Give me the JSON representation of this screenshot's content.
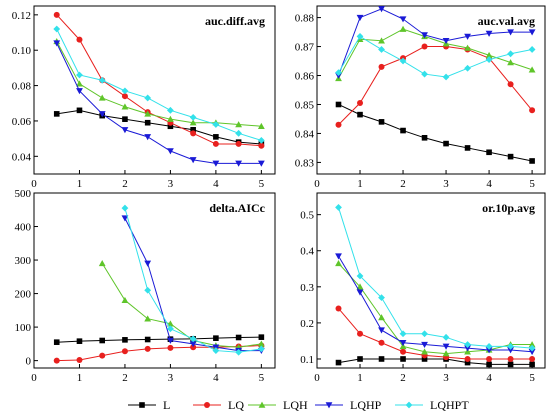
{
  "legend": {
    "items": [
      {
        "key": "L",
        "label": "L"
      },
      {
        "key": "LQ",
        "label": "LQ"
      },
      {
        "key": "LQH",
        "label": "LQH"
      },
      {
        "key": "LQHP",
        "label": "LQHP"
      },
      {
        "key": "LQHPT",
        "label": "LQHPT"
      }
    ],
    "placement": "bottom"
  },
  "series_style": {
    "L": {
      "color": "#000000",
      "marker": "square"
    },
    "LQ": {
      "color": "#e8201e",
      "marker": "circle"
    },
    "LQH": {
      "color": "#5fc52a",
      "marker": "triangle-up"
    },
    "LQHP": {
      "color": "#1a1ad6",
      "marker": "triangle-down"
    },
    "LQHPT": {
      "color": "#33e1ea",
      "marker": "diamond"
    }
  },
  "chart_data": [
    {
      "type": "line",
      "title": "auc.diff.avg",
      "xlim": [
        0,
        5.3
      ],
      "xticks": [
        0,
        1,
        2,
        3,
        4,
        5
      ],
      "ylim": [
        0.03,
        0.125
      ],
      "yticks": [
        0.04,
        0.06,
        0.08,
        0.1,
        0.12
      ],
      "ytick_labels": [
        "0.04",
        "0.06",
        "0.08",
        "0.10",
        "0.12"
      ],
      "series": [
        {
          "key": "L",
          "x": [
            0.5,
            1,
            1.5,
            2,
            2.5,
            3,
            3.5,
            4,
            4.5,
            5
          ],
          "values": [
            0.064,
            0.066,
            0.063,
            0.061,
            0.059,
            0.057,
            0.055,
            0.051,
            0.048,
            0.047
          ]
        },
        {
          "key": "LQ",
          "x": [
            0.5,
            1,
            1.5,
            2,
            2.5,
            3,
            3.5,
            4,
            4.5,
            5
          ],
          "values": [
            0.12,
            0.106,
            0.083,
            0.074,
            0.065,
            0.059,
            0.053,
            0.047,
            0.047,
            0.046
          ]
        },
        {
          "key": "LQH",
          "x": [
            0.5,
            1,
            1.5,
            2,
            2.5,
            3,
            3.5,
            4,
            4.5,
            5
          ],
          "values": [
            0.105,
            0.081,
            0.073,
            0.068,
            0.064,
            0.061,
            0.059,
            0.059,
            0.058,
            0.057
          ]
        },
        {
          "key": "LQHP",
          "x": [
            0.5,
            1,
            1.5,
            2,
            2.5,
            3,
            3.5,
            4,
            4.5,
            5
          ],
          "values": [
            0.104,
            0.077,
            0.064,
            0.055,
            0.051,
            0.043,
            0.038,
            0.036,
            0.036,
            0.036
          ]
        },
        {
          "key": "LQHPT",
          "x": [
            0.5,
            1,
            1.5,
            2,
            2.5,
            3,
            3.5,
            4,
            4.5,
            5
          ],
          "values": [
            0.112,
            0.086,
            0.083,
            0.077,
            0.073,
            0.066,
            0.062,
            0.058,
            0.053,
            0.049
          ]
        }
      ]
    },
    {
      "type": "line",
      "title": "auc.val.avg",
      "xlim": [
        0,
        5.3
      ],
      "xticks": [
        0,
        1,
        2,
        3,
        4,
        5
      ],
      "ylim": [
        0.826,
        0.884
      ],
      "yticks": [
        0.83,
        0.84,
        0.85,
        0.86,
        0.87,
        0.88
      ],
      "ytick_labels": [
        "0.83",
        "0.84",
        "0.85",
        "0.86",
        "0.87",
        "0.88"
      ],
      "series": [
        {
          "key": "L",
          "x": [
            0.5,
            1,
            1.5,
            2,
            2.5,
            3,
            3.5,
            4,
            4.5,
            5
          ],
          "values": [
            0.85,
            0.8465,
            0.844,
            0.841,
            0.8385,
            0.8365,
            0.835,
            0.8335,
            0.832,
            0.8305
          ]
        },
        {
          "key": "LQ",
          "x": [
            0.5,
            1,
            1.5,
            2,
            2.5,
            3,
            3.5,
            4,
            4.5,
            5
          ],
          "values": [
            0.843,
            0.8505,
            0.863,
            0.866,
            0.87,
            0.87,
            0.869,
            0.866,
            0.857,
            0.848
          ]
        },
        {
          "key": "LQH",
          "x": [
            0.5,
            1,
            1.5,
            2,
            2.5,
            3,
            3.5,
            4,
            4.5,
            5
          ],
          "values": [
            0.859,
            0.8725,
            0.872,
            0.876,
            0.8735,
            0.871,
            0.8695,
            0.867,
            0.8645,
            0.862
          ]
        },
        {
          "key": "LQHP",
          "x": [
            0.5,
            1,
            1.5,
            2,
            2.5,
            3,
            3.5,
            4,
            4.5,
            5
          ],
          "values": [
            0.86,
            0.88,
            0.883,
            0.8795,
            0.874,
            0.872,
            0.8735,
            0.8745,
            0.875,
            0.875
          ]
        },
        {
          "key": "LQHPT",
          "x": [
            0.5,
            1,
            1.5,
            2,
            2.5,
            3,
            3.5,
            4,
            4.5,
            5
          ],
          "values": [
            0.861,
            0.8735,
            0.869,
            0.865,
            0.8605,
            0.8595,
            0.8625,
            0.8655,
            0.8675,
            0.869
          ]
        }
      ]
    },
    {
      "type": "line",
      "title": "delta.AICc",
      "xlim": [
        0,
        5.3
      ],
      "xticks": [
        0,
        1,
        2,
        3,
        4,
        5
      ],
      "ylim": [
        -22,
        500
      ],
      "yticks": [
        0,
        100,
        200,
        300,
        400,
        500
      ],
      "ytick_labels": [
        "0",
        "100",
        "200",
        "300",
        "400",
        "500"
      ],
      "series": [
        {
          "key": "L",
          "x": [
            0.5,
            1,
            1.5,
            2,
            2.5,
            3,
            3.5,
            4,
            4.5,
            5
          ],
          "values": [
            55,
            58,
            60,
            62,
            63,
            64,
            65,
            67,
            69,
            70
          ]
        },
        {
          "key": "LQ",
          "x": [
            0.5,
            1,
            1.5,
            2,
            2.5,
            3,
            3.5,
            4,
            4.5,
            5
          ],
          "values": [
            0,
            2,
            15,
            28,
            35,
            38,
            40,
            40,
            42,
            45
          ]
        },
        {
          "key": "LQH",
          "x": [
            1.5,
            2,
            2.5,
            3,
            3.5,
            4,
            4.5,
            5
          ],
          "values": [
            290,
            180,
            125,
            110,
            60,
            45,
            40,
            50
          ]
        },
        {
          "key": "LQHP",
          "x": [
            2,
            2.5,
            3,
            3.5,
            4,
            4.5,
            5
          ],
          "values": [
            425,
            290,
            60,
            50,
            40,
            30,
            30
          ]
        },
        {
          "key": "LQHPT",
          "x": [
            2,
            2.5,
            3,
            3.5,
            4,
            4.5,
            5
          ],
          "values": [
            455,
            210,
            95,
            65,
            30,
            25,
            35
          ]
        }
      ]
    },
    {
      "type": "line",
      "title": "or.10p.avg",
      "xlim": [
        0,
        5.3
      ],
      "xticks": [
        0,
        1,
        2,
        3,
        4,
        5
      ],
      "ylim": [
        0.075,
        0.56
      ],
      "yticks": [
        0.1,
        0.2,
        0.3,
        0.4,
        0.5
      ],
      "ytick_labels": [
        "0.1",
        "0.2",
        "0.3",
        "0.4",
        "0.5"
      ],
      "series": [
        {
          "key": "L",
          "x": [
            0.5,
            1,
            1.5,
            2,
            2.5,
            3,
            3.5,
            4,
            4.5,
            5
          ],
          "values": [
            0.09,
            0.1,
            0.1,
            0.1,
            0.1,
            0.1,
            0.09,
            0.085,
            0.085,
            0.085
          ]
        },
        {
          "key": "LQ",
          "x": [
            0.5,
            1,
            1.5,
            2,
            2.5,
            3,
            3.5,
            4,
            4.5,
            5
          ],
          "values": [
            0.24,
            0.17,
            0.145,
            0.12,
            0.11,
            0.105,
            0.1,
            0.1,
            0.1,
            0.1
          ]
        },
        {
          "key": "LQH",
          "x": [
            0.5,
            1,
            1.5,
            2,
            2.5,
            3,
            3.5,
            4,
            4.5,
            5
          ],
          "values": [
            0.365,
            0.3,
            0.215,
            0.135,
            0.12,
            0.115,
            0.12,
            0.125,
            0.14,
            0.14
          ]
        },
        {
          "key": "LQHP",
          "x": [
            0.5,
            1,
            1.5,
            2,
            2.5,
            3,
            3.5,
            4,
            4.5,
            5
          ],
          "values": [
            0.385,
            0.285,
            0.18,
            0.145,
            0.14,
            0.135,
            0.13,
            0.125,
            0.125,
            0.12
          ]
        },
        {
          "key": "LQHPT",
          "x": [
            0.5,
            1,
            1.5,
            2,
            2.5,
            3,
            3.5,
            4,
            4.5,
            5
          ],
          "values": [
            0.52,
            0.33,
            0.27,
            0.17,
            0.17,
            0.16,
            0.14,
            0.135,
            0.135,
            0.13
          ]
        }
      ]
    }
  ]
}
